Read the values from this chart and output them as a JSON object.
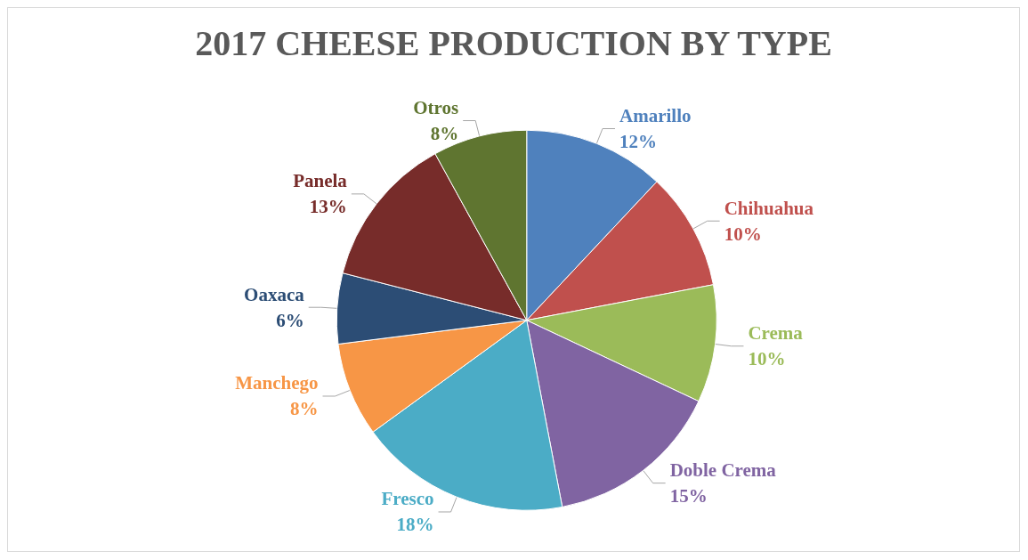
{
  "chart_data": {
    "type": "pie",
    "title": "2017 CHEESE PRODUCTION BY TYPE",
    "categories": [
      "Amarillo",
      "Chihuahua",
      "Crema",
      "Doble Crema",
      "Fresco",
      "Manchego",
      "Oaxaca",
      "Panela",
      "Otros"
    ],
    "values": [
      12,
      10,
      10,
      15,
      18,
      8,
      6,
      13,
      8
    ],
    "value_labels": [
      "12%",
      "10%",
      "10%",
      "15%",
      "18%",
      "8%",
      "6%",
      "13%",
      "8%"
    ],
    "colors": [
      "#4f81bd",
      "#c0504d",
      "#9bbb59",
      "#8064a2",
      "#4bacc6",
      "#f79646",
      "#2c4d75",
      "#772c2a",
      "#5f7530"
    ],
    "legend": false
  }
}
